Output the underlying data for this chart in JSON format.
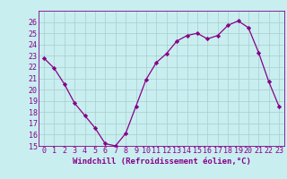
{
  "x": [
    0,
    1,
    2,
    3,
    4,
    5,
    6,
    7,
    8,
    9,
    10,
    11,
    12,
    13,
    14,
    15,
    16,
    17,
    18,
    19,
    20,
    21,
    22,
    23
  ],
  "y": [
    22.8,
    21.9,
    20.5,
    18.8,
    17.7,
    16.6,
    15.2,
    15.0,
    16.1,
    18.5,
    20.9,
    22.4,
    23.2,
    24.3,
    24.8,
    25.0,
    24.5,
    24.8,
    25.7,
    26.1,
    25.5,
    23.3,
    20.7,
    18.5
  ],
  "line_color": "#880088",
  "marker": "D",
  "marker_size": 2.2,
  "bg_color": "#c8eef0",
  "grid_color": "#aacccc",
  "xlabel": "Windchill (Refroidissement éolien,°C)",
  "xlabel_fontsize": 6.5,
  "tick_fontsize": 6.0,
  "ylim": [
    15,
    27
  ],
  "xlim": [
    -0.5,
    23.5
  ],
  "yticks": [
    15,
    16,
    17,
    18,
    19,
    20,
    21,
    22,
    23,
    24,
    25,
    26
  ],
  "xticks": [
    0,
    1,
    2,
    3,
    4,
    5,
    6,
    7,
    8,
    9,
    10,
    11,
    12,
    13,
    14,
    15,
    16,
    17,
    18,
    19,
    20,
    21,
    22,
    23
  ]
}
